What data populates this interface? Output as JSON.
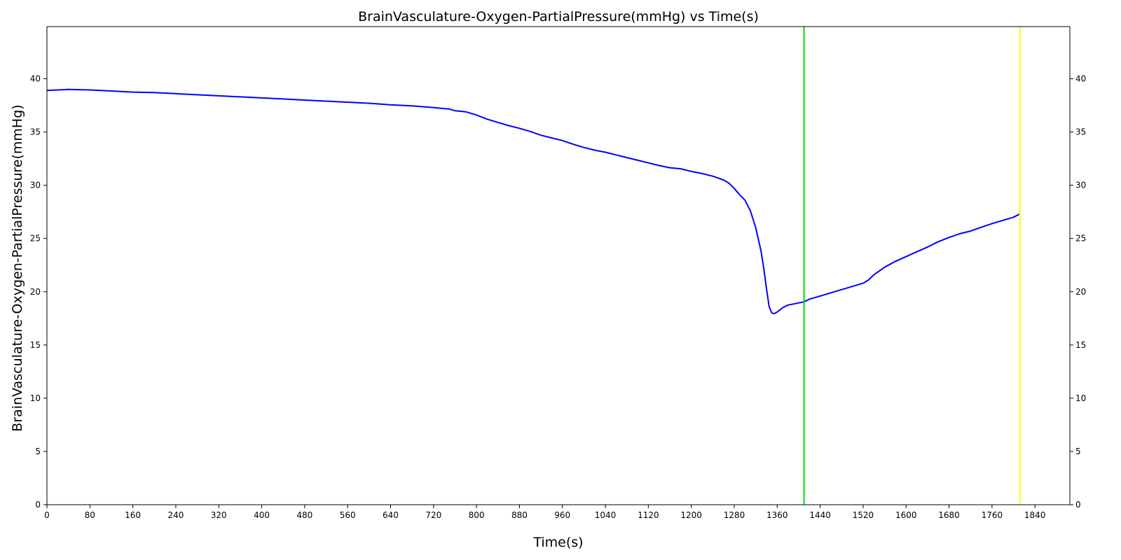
{
  "chart_data": {
    "type": "line",
    "title": "BrainVasculature-Oxygen-PartialPressure(mmHg) vs Time(s)",
    "xlabel": "Time(s)",
    "ylabel": "BrainVasculature-Oxygen-PartialPressure(mmHg)",
    "xlim": [
      0,
      1905
    ],
    "ylim": [
      0,
      44.9
    ],
    "x_ticks": [
      0,
      80,
      160,
      240,
      320,
      400,
      480,
      560,
      640,
      720,
      800,
      880,
      960,
      1040,
      1120,
      1200,
      1280,
      1360,
      1440,
      1520,
      1600,
      1680,
      1760,
      1840
    ],
    "y_ticks": [
      0,
      5,
      10,
      15,
      20,
      25,
      30,
      35,
      40
    ],
    "right_y_ticks": true,
    "grid": false,
    "series": [
      {
        "color": "#0000ff",
        "x": [
          0,
          40,
          80,
          120,
          160,
          200,
          240,
          280,
          320,
          360,
          400,
          440,
          480,
          520,
          560,
          600,
          640,
          680,
          720,
          750,
          760,
          770,
          780,
          800,
          820,
          840,
          860,
          880,
          900,
          920,
          940,
          960,
          980,
          1000,
          1020,
          1040,
          1060,
          1080,
          1100,
          1120,
          1140,
          1160,
          1180,
          1200,
          1220,
          1240,
          1260,
          1270,
          1280,
          1290,
          1300,
          1310,
          1320,
          1330,
          1335,
          1340,
          1345,
          1350,
          1355,
          1360,
          1370,
          1380,
          1390,
          1400,
          1410,
          1420,
          1440,
          1460,
          1480,
          1500,
          1520,
          1530,
          1540,
          1560,
          1580,
          1600,
          1620,
          1640,
          1660,
          1680,
          1700,
          1720,
          1740,
          1760,
          1780,
          1800,
          1812
        ],
        "y": [
          38.9,
          39.0,
          38.95,
          38.85,
          38.75,
          38.7,
          38.6,
          38.5,
          38.4,
          38.3,
          38.2,
          38.1,
          38.0,
          37.9,
          37.8,
          37.7,
          37.55,
          37.45,
          37.3,
          37.15,
          37.0,
          36.95,
          36.9,
          36.6,
          36.2,
          35.9,
          35.6,
          35.35,
          35.05,
          34.7,
          34.45,
          34.2,
          33.85,
          33.55,
          33.3,
          33.1,
          32.85,
          32.6,
          32.35,
          32.1,
          31.85,
          31.65,
          31.55,
          31.3,
          31.1,
          30.85,
          30.5,
          30.2,
          29.7,
          29.1,
          28.6,
          27.6,
          26.0,
          23.8,
          22.2,
          20.3,
          18.6,
          18.0,
          17.95,
          18.1,
          18.5,
          18.75,
          18.85,
          18.95,
          19.05,
          19.3,
          19.6,
          19.9,
          20.2,
          20.5,
          20.8,
          21.1,
          21.6,
          22.3,
          22.85,
          23.3,
          23.75,
          24.2,
          24.7,
          25.1,
          25.45,
          25.7,
          26.05,
          26.4,
          26.7,
          27.0,
          27.3
        ]
      }
    ],
    "vertical_lines": [
      {
        "x": 1410,
        "color": "#00dd00"
      },
      {
        "x": 1812,
        "color": "#ffff00"
      }
    ]
  }
}
